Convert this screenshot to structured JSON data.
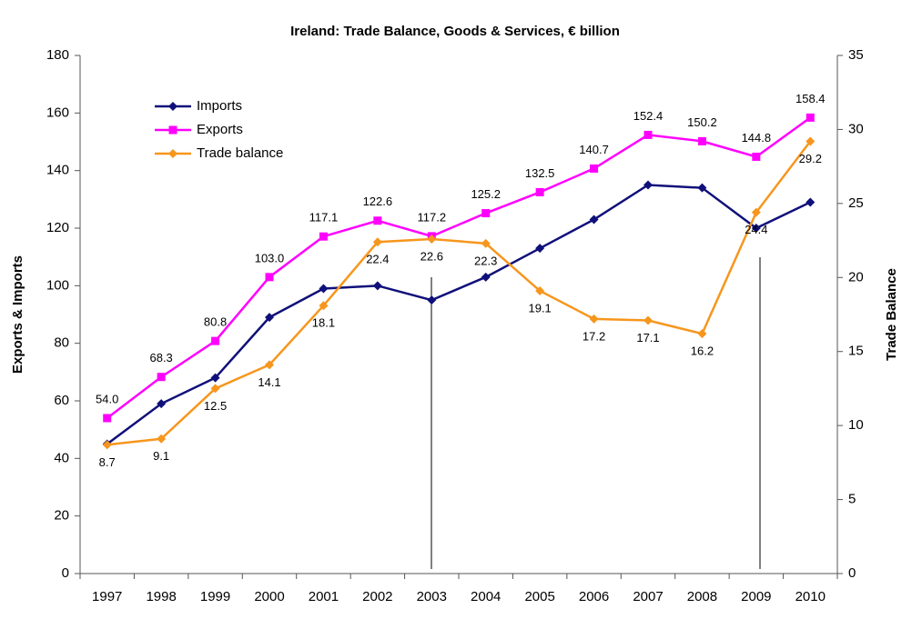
{
  "chart_data": {
    "type": "line",
    "title": "Ireland: Trade Balance, Goods & Services, € billion",
    "y_label": "Exports & Imports",
    "y2_label": "Trade Balance",
    "categories": [
      "1997",
      "1998",
      "1999",
      "2000",
      "2001",
      "2002",
      "2003",
      "2004",
      "2005",
      "2006",
      "2007",
      "2008",
      "2009",
      "2010"
    ],
    "series": [
      {
        "name": "Imports",
        "color": "#10107a",
        "marker": "diamond",
        "values": [
          45,
          59,
          68,
          89,
          99,
          100,
          95,
          103,
          113,
          123,
          135,
          134,
          120,
          129
        ]
      },
      {
        "name": "Exports",
        "color": "#ff00ff",
        "marker": "square",
        "values": [
          54,
          68.3,
          80.8,
          103,
          117.1,
          122.6,
          117.2,
          125.2,
          132.5,
          140.7,
          152.4,
          150.2,
          144.8,
          158.4
        ],
        "value_labels": [
          "54.0",
          "68.3",
          "80.8",
          "103.0",
          "117.1",
          "122.6",
          "117.2",
          "125.2",
          "132.5",
          "140.7",
          "152.4",
          "150.2",
          "144.8",
          "158.4"
        ]
      },
      {
        "name": "Trade balance",
        "color": "#f7961d",
        "marker": "diamond",
        "axis": "y2",
        "values": [
          8.7,
          9.1,
          12.5,
          14.1,
          18.1,
          22.4,
          22.6,
          22.3,
          19.1,
          17.2,
          17.1,
          16.2,
          24.4,
          29.2
        ]
      }
    ],
    "ylim": [
      0,
      180
    ],
    "yticks": [
      0,
      20,
      40,
      60,
      80,
      100,
      120,
      140,
      160,
      180
    ],
    "y2lim": [
      0,
      35
    ],
    "y2ticks": [
      0,
      5,
      10,
      15,
      20,
      25,
      30,
      35
    ],
    "grid": false,
    "legend": "upper left"
  }
}
